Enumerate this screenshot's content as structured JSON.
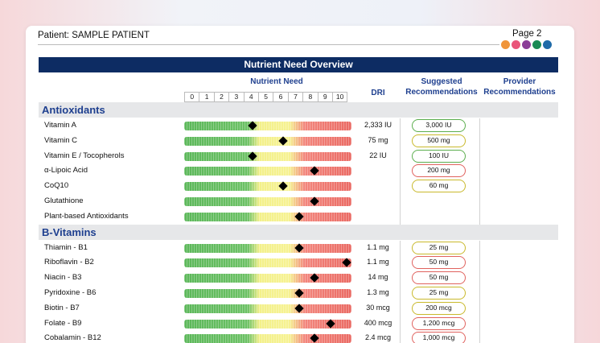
{
  "header": {
    "patient": "Patient: SAMPLE PATIENT",
    "page": "Page 2",
    "dot_colors": [
      "#f0953a",
      "#e9557a",
      "#8b3d97",
      "#1a8a55",
      "#1f6aa8"
    ]
  },
  "title": "Nutrient Need Overview",
  "columns": {
    "need": "Nutrient Need",
    "dri": "DRI",
    "suggested_line1": "Suggested",
    "suggested_line2": "Recommendations",
    "provider_line1": "Provider",
    "provider_line2": "Recommendations"
  },
  "scale": [
    "0",
    "1",
    "2",
    "3",
    "4",
    "5",
    "6",
    "7",
    "8",
    "9",
    "10"
  ],
  "pill_colors": {
    "green": "#5cae4e",
    "yellow": "#c9b92c",
    "red": "#e0625e"
  },
  "sections": [
    {
      "title": "Antioxidants",
      "items": [
        {
          "name": "Vitamin A",
          "need": 4.3,
          "dri": "2,333 IU",
          "suggested": "3,000 IU",
          "pill": "green"
        },
        {
          "name": "Vitamin C",
          "need": 6.2,
          "dri": "75 mg",
          "suggested": "500 mg",
          "pill": "yellow"
        },
        {
          "name": "Vitamin E / Tocopherols",
          "need": 4.3,
          "dri": "22 IU",
          "suggested": "100 IU",
          "pill": "green"
        },
        {
          "name": "α-Lipoic Acid",
          "need": 8.2,
          "dri": "",
          "suggested": "200 mg",
          "pill": "red"
        },
        {
          "name": "CoQ10",
          "need": 6.2,
          "dri": "",
          "suggested": "60 mg",
          "pill": "yellow"
        },
        {
          "name": "Glutathione",
          "need": 8.2,
          "dri": "",
          "suggested": "",
          "pill": ""
        },
        {
          "name": "Plant-based Antioxidants",
          "need": 7.2,
          "dri": "",
          "suggested": "",
          "pill": ""
        }
      ]
    },
    {
      "title": "B-Vitamins",
      "items": [
        {
          "name": "Thiamin - B1",
          "need": 7.2,
          "dri": "1.1 mg",
          "suggested": "25 mg",
          "pill": "yellow"
        },
        {
          "name": "Riboflavin - B2",
          "need": 10.2,
          "dri": "1.1 mg",
          "suggested": "50 mg",
          "pill": "red"
        },
        {
          "name": "Niacin - B3",
          "need": 8.2,
          "dri": "14 mg",
          "suggested": "50 mg",
          "pill": "red"
        },
        {
          "name": "Pyridoxine - B6",
          "need": 7.2,
          "dri": "1.3 mg",
          "suggested": "25 mg",
          "pill": "yellow"
        },
        {
          "name": "Biotin - B7",
          "need": 7.2,
          "dri": "30 mcg",
          "suggested": "200 mcg",
          "pill": "yellow"
        },
        {
          "name": "Folate - B9",
          "need": 9.2,
          "dri": "400 mcg",
          "suggested": "1,200 mcg",
          "pill": "red"
        },
        {
          "name": "Cobalamin - B12",
          "need": 8.2,
          "dri": "2.4 mcg",
          "suggested": "1,000 mcg",
          "pill": "red"
        }
      ]
    }
  ]
}
